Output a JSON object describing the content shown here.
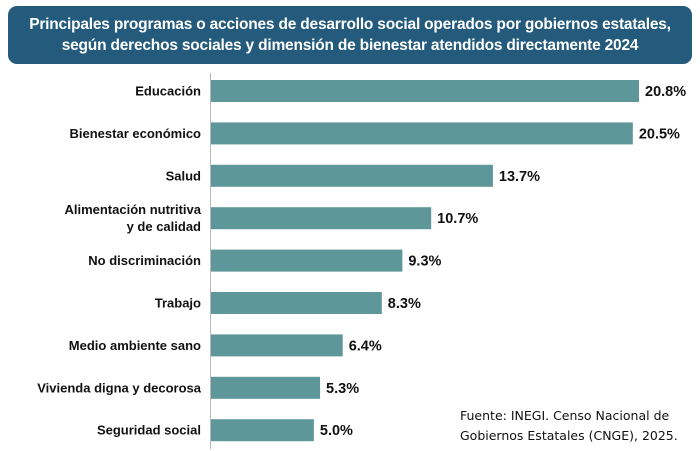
{
  "header": {
    "title_line1": "Principales programas o acciones de desarrollo social operados por gobiernos estatales,",
    "title_line2": "según derechos sociales y dimensión de bienestar atendidos directamente 2024"
  },
  "chart_data": {
    "type": "bar",
    "orientation": "horizontal",
    "title": "Principales programas o acciones de desarrollo social operados por gobiernos estatales, según derechos sociales y dimensión de bienestar atendidos directamente 2024",
    "categories": [
      [
        "Educación"
      ],
      [
        "Bienestar económico"
      ],
      [
        "Salud"
      ],
      [
        "Alimentación nutritiva",
        "y de calidad"
      ],
      [
        "No discriminación"
      ],
      [
        "Trabajo"
      ],
      [
        "Medio ambiente sano"
      ],
      [
        "Vivienda digna y decorosa"
      ],
      [
        "Seguridad social"
      ]
    ],
    "values": [
      20.8,
      20.5,
      13.7,
      10.7,
      9.3,
      8.3,
      6.4,
      5.3,
      5.0
    ],
    "value_labels": [
      "20.8%",
      "20.5%",
      "13.7%",
      "10.7%",
      "9.3%",
      "8.3%",
      "6.4%",
      "5.3%",
      "5.0%"
    ],
    "unit": "%",
    "xlim": [
      0,
      20.8
    ],
    "grid": false,
    "bar_color": "#5e9799"
  },
  "source": {
    "line1": "Fuente: INEGI. Censo Nacional de",
    "line2": "Gobiernos Estatales (CNGE), 2025."
  }
}
